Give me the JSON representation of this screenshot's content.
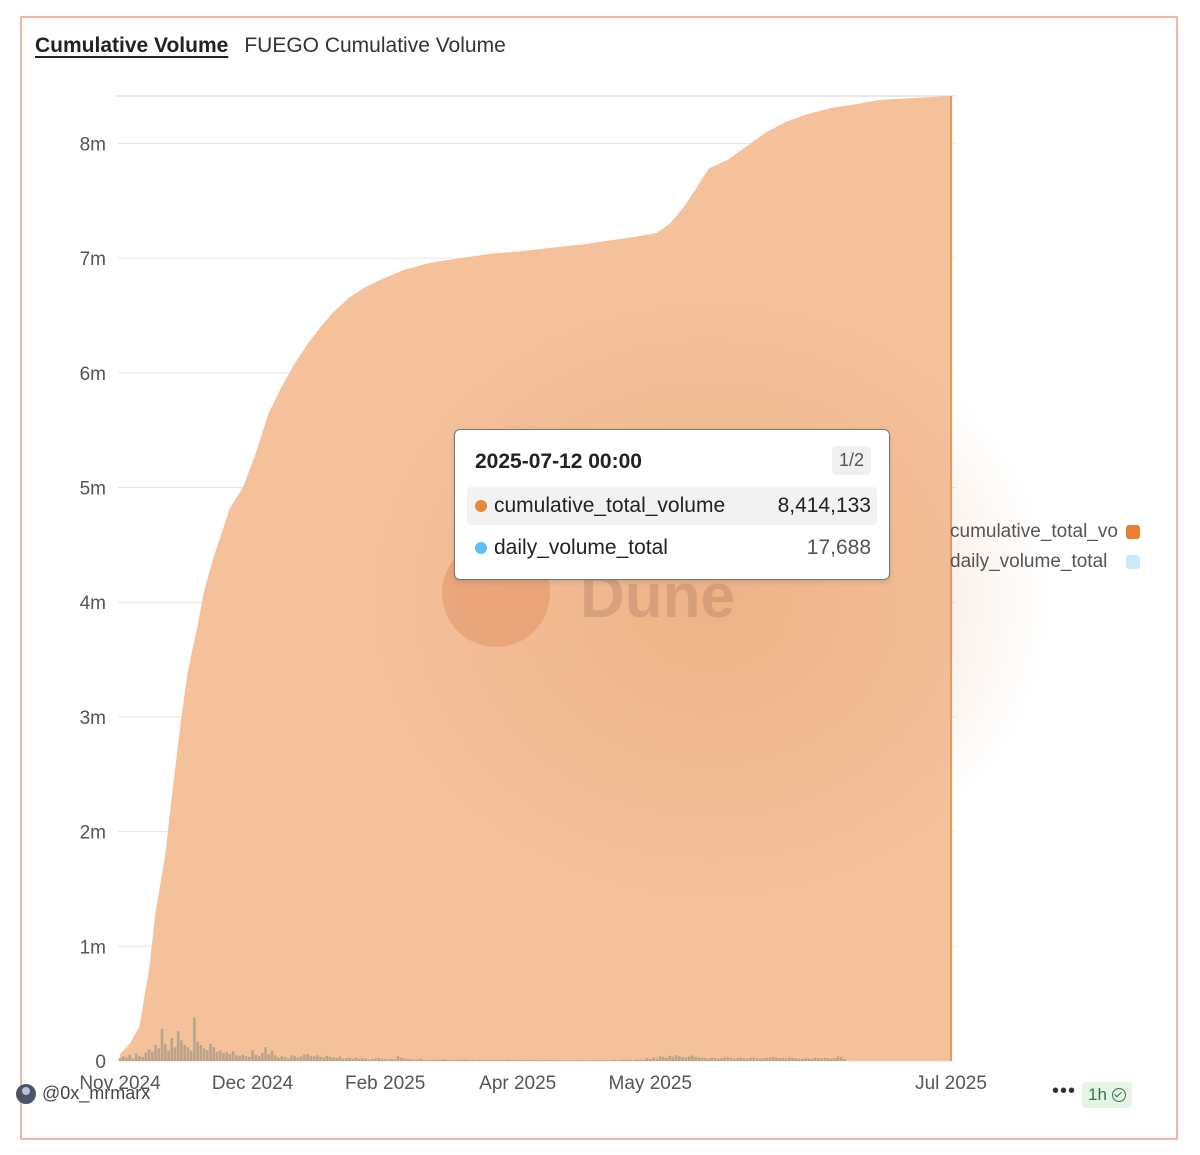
{
  "header": {
    "tab_label": "Cumulative Volume",
    "chart_title": "FUEGO Cumulative Volume"
  },
  "watermark": "Dune",
  "tooltip": {
    "date": "2025-07-12 00:00",
    "page": "1/2",
    "rows": [
      {
        "name": "cumulative_total_volume",
        "value": "8,414,133",
        "color": "#e8883a"
      },
      {
        "name": "daily_volume_total",
        "value": "17,688",
        "color": "#5bc0f2"
      }
    ]
  },
  "legend": [
    {
      "label": "cumulative_total_volume",
      "color": "#ea7f33"
    },
    {
      "label": "daily_volume_total",
      "color": "#cdeafb"
    }
  ],
  "footer": {
    "author": "@0x_mrmarx",
    "more": "•••",
    "refresh": "1h"
  },
  "colors": {
    "area": "#f4c19b",
    "bars": "#b9a48a",
    "grid": "#e6e6e6"
  },
  "chart_data": {
    "type": "area",
    "title": "FUEGO Cumulative Volume",
    "xlabel": "",
    "ylabel": "",
    "ylim": [
      0,
      8414133
    ],
    "y_ticks": [
      {
        "value": 0,
        "label": "0"
      },
      {
        "value": 1000000,
        "label": "1m"
      },
      {
        "value": 2000000,
        "label": "2m"
      },
      {
        "value": 3000000,
        "label": "3m"
      },
      {
        "value": 4000000,
        "label": "4m"
      },
      {
        "value": 5000000,
        "label": "5m"
      },
      {
        "value": 6000000,
        "label": "6m"
      },
      {
        "value": 7000000,
        "label": "7m"
      },
      {
        "value": 8000000,
        "label": "8m"
      }
    ],
    "xlim": [
      "2024-10-28",
      "2025-07-12"
    ],
    "x_ticks": [
      {
        "date": "2024-10-28",
        "label": "Nov 2024"
      },
      {
        "date": "2024-12-08",
        "label": "Dec 2024"
      },
      {
        "date": "2025-01-18",
        "label": "Feb 2025"
      },
      {
        "date": "2025-02-28",
        "label": "Apr 2025"
      },
      {
        "date": "2025-04-10",
        "label": "May 2025"
      },
      {
        "date": "2025-07-12",
        "label": "Jul 2025"
      }
    ],
    "series": [
      {
        "name": "cumulative_total_volume",
        "type": "area",
        "points": [
          [
            "2024-10-28",
            60000
          ],
          [
            "2024-10-31",
            150000
          ],
          [
            "2024-11-03",
            300000
          ],
          [
            "2024-11-06",
            800000
          ],
          [
            "2024-11-08",
            1300000
          ],
          [
            "2024-11-11",
            1800000
          ],
          [
            "2024-11-13",
            2300000
          ],
          [
            "2024-11-16",
            3000000
          ],
          [
            "2024-11-18",
            3400000
          ],
          [
            "2024-11-21",
            3800000
          ],
          [
            "2024-11-23",
            4100000
          ],
          [
            "2024-11-26",
            4400000
          ],
          [
            "2024-11-29",
            4650000
          ],
          [
            "2024-12-01",
            4820000
          ],
          [
            "2024-12-05",
            5000000
          ],
          [
            "2024-12-09",
            5300000
          ],
          [
            "2024-12-13",
            5650000
          ],
          [
            "2024-12-17",
            5880000
          ],
          [
            "2024-12-21",
            6080000
          ],
          [
            "2024-12-25",
            6250000
          ],
          [
            "2024-12-29",
            6400000
          ],
          [
            "2025-01-02",
            6530000
          ],
          [
            "2025-01-07",
            6660000
          ],
          [
            "2025-01-12",
            6750000
          ],
          [
            "2025-01-18",
            6830000
          ],
          [
            "2025-01-24",
            6900000
          ],
          [
            "2025-02-01",
            6960000
          ],
          [
            "2025-02-10",
            7000000
          ],
          [
            "2025-02-20",
            7040000
          ],
          [
            "2025-03-01",
            7060000
          ],
          [
            "2025-03-10",
            7090000
          ],
          [
            "2025-03-20",
            7120000
          ],
          [
            "2025-03-30",
            7160000
          ],
          [
            "2025-04-06",
            7190000
          ],
          [
            "2025-04-12",
            7220000
          ],
          [
            "2025-04-16",
            7300000
          ],
          [
            "2025-04-20",
            7430000
          ],
          [
            "2025-04-24",
            7600000
          ],
          [
            "2025-04-28",
            7780000
          ],
          [
            "2025-05-04",
            7860000
          ],
          [
            "2025-05-10",
            7980000
          ],
          [
            "2025-05-16",
            8100000
          ],
          [
            "2025-05-22",
            8190000
          ],
          [
            "2025-05-28",
            8250000
          ],
          [
            "2025-06-05",
            8310000
          ],
          [
            "2025-06-12",
            8340000
          ],
          [
            "2025-06-20",
            8380000
          ],
          [
            "2025-07-12",
            8414133
          ]
        ]
      },
      {
        "name": "daily_volume_total",
        "type": "bar",
        "start": "2024-10-28",
        "values": [
          25000,
          40000,
          30000,
          55000,
          20000,
          65000,
          45000,
          35000,
          75000,
          100000,
          80000,
          140000,
          110000,
          280000,
          150000,
          90000,
          200000,
          120000,
          260000,
          180000,
          140000,
          120000,
          90000,
          380000,
          170000,
          140000,
          110000,
          95000,
          150000,
          120000,
          80000,
          90000,
          70000,
          75000,
          60000,
          85000,
          50000,
          45000,
          55000,
          40000,
          35000,
          95000,
          55000,
          45000,
          70000,
          120000,
          60000,
          90000,
          50000,
          30000,
          40000,
          35000,
          25000,
          50000,
          45000,
          30000,
          40000,
          55000,
          60000,
          45000,
          40000,
          50000,
          35000,
          30000,
          45000,
          35000,
          30000,
          25000,
          40000,
          20000,
          25000,
          30000,
          22000,
          30000,
          18000,
          25000,
          20000,
          15000,
          18000,
          22000,
          28000,
          20000,
          18000,
          15000,
          20000,
          15000,
          40000,
          30000,
          22000,
          18000,
          15000,
          12000,
          14000,
          20000,
          10000,
          12000,
          8000,
          10000,
          12000,
          9000,
          15000,
          11000,
          10000,
          8000,
          9000,
          12000,
          10000,
          14000,
          9000,
          8000,
          7000,
          10000,
          12000,
          9000,
          8000,
          10000,
          7000,
          9000,
          8000,
          6000,
          12000,
          8000,
          7000,
          9000,
          6000,
          8000,
          5000,
          7000,
          9000,
          6000,
          5000,
          7000,
          8000,
          6000,
          5000,
          6000,
          7000,
          5000,
          6000,
          4000,
          5000,
          6000,
          7000,
          5000,
          6000,
          4000,
          5000,
          7000,
          6000,
          8000,
          5000,
          6000,
          7000,
          9000,
          6000,
          8000,
          10000,
          12000,
          9000,
          8000,
          14000,
          10000,
          12000,
          25000,
          18000,
          30000,
          22000,
          40000,
          35000,
          28000,
          45000,
          38000,
          50000,
          42000,
          35000,
          30000,
          40000,
          48000,
          36000,
          30000,
          28000,
          25000,
          22000,
          30000,
          26000,
          20000,
          24000,
          30000,
          35000,
          28000,
          22000,
          26000,
          30000,
          24000,
          20000,
          28000,
          32000,
          26000,
          22000,
          25000,
          30000,
          28000,
          35000,
          30000,
          25000,
          28000,
          22000,
          30000,
          26000,
          24000,
          20000,
          18000,
          25000,
          22000,
          20000,
          30000,
          25000,
          22000,
          28000,
          24000,
          20000,
          26000,
          40000,
          35000,
          17688
        ]
      }
    ],
    "tooltip_series_values": {
      "cumulative_total_volume": 8414133,
      "daily_volume_total": 17688
    }
  }
}
